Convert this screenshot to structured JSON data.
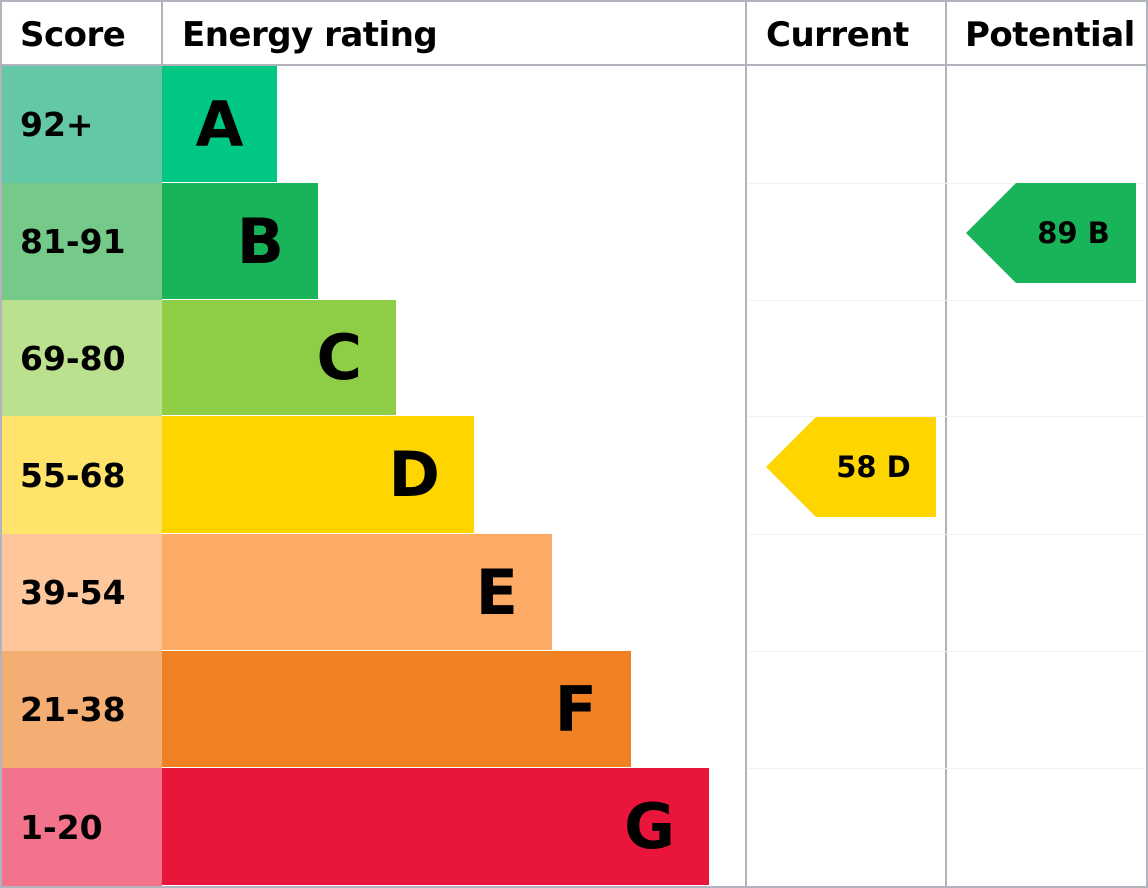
{
  "headers": {
    "score": "Score",
    "energy_rating": "Energy rating",
    "current": "Current",
    "potential": "Potential"
  },
  "chart_data": {
    "type": "bar",
    "bands": [
      {
        "band": "A",
        "range": "92+",
        "color": "#00c781",
        "score_color": "#64c7a5"
      },
      {
        "band": "B",
        "range": "81-91",
        "color": "#19b459",
        "score_color": "#75c989"
      },
      {
        "band": "C",
        "range": "69-80",
        "color": "#8dce46",
        "score_color": "#bbe08e"
      },
      {
        "band": "D",
        "range": "55-68",
        "color": "#ffd500",
        "score_color": "#ffe36b"
      },
      {
        "band": "E",
        "range": "39-54",
        "color": "#fcaa65",
        "score_color": "#fdc79b"
      },
      {
        "band": "F",
        "range": "21-38",
        "color": "#ef8023",
        "score_color": "#f4ad72"
      },
      {
        "band": "G",
        "range": "1-20",
        "color": "#e9153b",
        "score_color": "#f2738b"
      }
    ],
    "current": {
      "value": 58,
      "band": "D",
      "label": "58 D",
      "color": "#ffd500"
    },
    "potential": {
      "value": 89,
      "band": "B",
      "label": "89 B",
      "color": "#19b459"
    }
  },
  "border_color": "#b1b4bd"
}
